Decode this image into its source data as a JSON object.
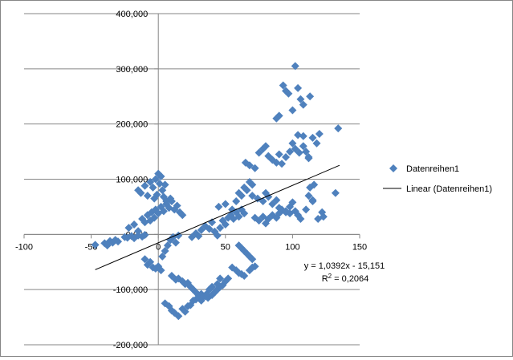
{
  "chart_data": {
    "type": "scatter",
    "title": "",
    "xlabel": "",
    "ylabel": "",
    "xlim": [
      -100,
      150
    ],
    "ylim": [
      -200000,
      400000
    ],
    "x_ticks": [
      -100,
      -50,
      0,
      50,
      100,
      150
    ],
    "x_tick_labels": [
      "-100",
      "-50",
      "0",
      "50",
      "100",
      "150"
    ],
    "y_ticks": [
      -200000,
      -100000,
      0,
      100000,
      200000,
      300000,
      400000
    ],
    "y_tick_labels": [
      "-200,000",
      "-100,000",
      "0,000",
      "100,000",
      "200,000",
      "300,000",
      "400,000"
    ],
    "grid": "horizontal major gridlines",
    "legend_position": "right",
    "legend": [
      "Datenreihen1",
      "Linear (Datenreihen1)"
    ],
    "marker_color": "#4f81bd",
    "trendline_color": "#000000",
    "trendline": {
      "slope": 1039.2,
      "intercept": -15151,
      "x_range": [
        -47,
        135
      ]
    },
    "annotation_equation": "y = 1,0392x - 15,151",
    "annotation_r2_prefix": "R",
    "annotation_r2_sup": "2",
    "annotation_r2_value": " = 0,2064",
    "series": [
      {
        "name": "Datenreihen1",
        "points": [
          [
            -47,
            -19000
          ],
          [
            -40,
            -16000
          ],
          [
            -38,
            -20000
          ],
          [
            -36,
            -12000
          ],
          [
            -34,
            -15000
          ],
          [
            -32,
            -10000
          ],
          [
            -30,
            -13000
          ],
          [
            -25,
            -5000
          ],
          [
            -23,
            -6000
          ],
          [
            -20,
            -3000
          ],
          [
            -18,
            -7000
          ],
          [
            -15,
            -2000
          ],
          [
            -12,
            -4000
          ],
          [
            -10,
            -1000
          ],
          [
            -22,
            12000
          ],
          [
            -18,
            18000
          ],
          [
            -15,
            6000
          ],
          [
            -12,
            28000
          ],
          [
            -10,
            22000
          ],
          [
            -8,
            35000
          ],
          [
            -6,
            25000
          ],
          [
            -5,
            40000
          ],
          [
            -3,
            30000
          ],
          [
            -2,
            45000
          ],
          [
            0,
            38000
          ],
          [
            2,
            50000
          ],
          [
            4,
            42000
          ],
          [
            6,
            55000
          ],
          [
            8,
            48000
          ],
          [
            10,
            60000
          ],
          [
            12,
            45000
          ],
          [
            14,
            52000
          ],
          [
            16,
            40000
          ],
          [
            18,
            35000
          ],
          [
            -15,
            80000
          ],
          [
            -13,
            75000
          ],
          [
            -10,
            88000
          ],
          [
            -8,
            70000
          ],
          [
            -6,
            95000
          ],
          [
            -4,
            85000
          ],
          [
            -2,
            100000
          ],
          [
            0,
            110000
          ],
          [
            1,
            92000
          ],
          [
            2,
            105000
          ],
          [
            3,
            80000
          ],
          [
            5,
            90000
          ],
          [
            -3,
            65000
          ],
          [
            -1,
            72000
          ],
          [
            4,
            68000
          ],
          [
            6,
            60000
          ],
          [
            9,
            65000
          ],
          [
            -10,
            -45000
          ],
          [
            -8,
            -55000
          ],
          [
            -6,
            -50000
          ],
          [
            -4,
            -60000
          ],
          [
            -2,
            -62000
          ],
          [
            0,
            -58000
          ],
          [
            2,
            -65000
          ],
          [
            3,
            -40000
          ],
          [
            5,
            -30000
          ],
          [
            7,
            -20000
          ],
          [
            9,
            -10000
          ],
          [
            11,
            -5000
          ],
          [
            13,
            -15000
          ],
          [
            15,
            -2000
          ],
          [
            10,
            -75000
          ],
          [
            13,
            -82000
          ],
          [
            15,
            -80000
          ],
          [
            18,
            -85000
          ],
          [
            20,
            -90000
          ],
          [
            22,
            -88000
          ],
          [
            24,
            -95000
          ],
          [
            26,
            -100000
          ],
          [
            28,
            -105000
          ],
          [
            30,
            -110000
          ],
          [
            32,
            -108000
          ],
          [
            35,
            -112000
          ],
          [
            37,
            -115000
          ],
          [
            40,
            -110000
          ],
          [
            42,
            -105000
          ],
          [
            44,
            -100000
          ],
          [
            46,
            -95000
          ],
          [
            48,
            -92000
          ],
          [
            50,
            -85000
          ],
          [
            52,
            -80000
          ],
          [
            5,
            -125000
          ],
          [
            8,
            -130000
          ],
          [
            10,
            -138000
          ],
          [
            12,
            -142000
          ],
          [
            15,
            -148000
          ],
          [
            18,
            -135000
          ],
          [
            20,
            -140000
          ],
          [
            22,
            -130000
          ],
          [
            24,
            -128000
          ],
          [
            26,
            -120000
          ],
          [
            28,
            -118000
          ],
          [
            30,
            -115000
          ],
          [
            32,
            -120000
          ],
          [
            34,
            -112000
          ],
          [
            36,
            -108000
          ],
          [
            38,
            -100000
          ],
          [
            40,
            -95000
          ],
          [
            44,
            -90000
          ],
          [
            46,
            -80000
          ],
          [
            25,
            -5000
          ],
          [
            28,
            2000
          ],
          [
            30,
            -3000
          ],
          [
            32,
            8000
          ],
          [
            35,
            15000
          ],
          [
            38,
            10000
          ],
          [
            40,
            22000
          ],
          [
            42,
            5000
          ],
          [
            44,
            -2000
          ],
          [
            46,
            12000
          ],
          [
            48,
            25000
          ],
          [
            50,
            18000
          ],
          [
            52,
            30000
          ],
          [
            54,
            35000
          ],
          [
            56,
            28000
          ],
          [
            58,
            40000
          ],
          [
            60,
            32000
          ],
          [
            62,
            45000
          ],
          [
            64,
            38000
          ],
          [
            45,
            50000
          ],
          [
            50,
            55000
          ],
          [
            55,
            45000
          ],
          [
            58,
            60000
          ],
          [
            60,
            75000
          ],
          [
            62,
            70000
          ],
          [
            64,
            85000
          ],
          [
            66,
            80000
          ],
          [
            68,
            95000
          ],
          [
            70,
            90000
          ],
          [
            60,
            -20000
          ],
          [
            62,
            -25000
          ],
          [
            64,
            -30000
          ],
          [
            66,
            -35000
          ],
          [
            68,
            -40000
          ],
          [
            70,
            -45000
          ],
          [
            55,
            -60000
          ],
          [
            58,
            -65000
          ],
          [
            60,
            -70000
          ],
          [
            62,
            -72000
          ],
          [
            64,
            -75000
          ],
          [
            68,
            -65000
          ],
          [
            70,
            -60000
          ],
          [
            72,
            -58000
          ],
          [
            65,
            130000
          ],
          [
            68,
            125000
          ],
          [
            72,
            120000
          ],
          [
            75,
            148000
          ],
          [
            78,
            155000
          ],
          [
            80,
            160000
          ],
          [
            82,
            142000
          ],
          [
            85,
            135000
          ],
          [
            88,
            130000
          ],
          [
            90,
            145000
          ],
          [
            92,
            128000
          ],
          [
            95,
            140000
          ],
          [
            98,
            150000
          ],
          [
            100,
            165000
          ],
          [
            102,
            155000
          ],
          [
            105,
            148000
          ],
          [
            108,
            160000
          ],
          [
            110,
            150000
          ],
          [
            112,
            138000
          ],
          [
            70,
            70000
          ],
          [
            74,
            65000
          ],
          [
            78,
            60000
          ],
          [
            80,
            75000
          ],
          [
            82,
            68000
          ],
          [
            85,
            55000
          ],
          [
            88,
            62000
          ],
          [
            90,
            48000
          ],
          [
            92,
            45000
          ],
          [
            95,
            40000
          ],
          [
            98,
            50000
          ],
          [
            100,
            58000
          ],
          [
            102,
            42000
          ],
          [
            104,
            35000
          ],
          [
            106,
            28000
          ],
          [
            110,
            45000
          ],
          [
            112,
            70000
          ],
          [
            115,
            60000
          ],
          [
            72,
            30000
          ],
          [
            75,
            25000
          ],
          [
            78,
            32000
          ],
          [
            80,
            20000
          ],
          [
            82,
            28000
          ],
          [
            85,
            35000
          ],
          [
            88,
            30000
          ],
          [
            90,
            38000
          ],
          [
            95,
            42000
          ],
          [
            98,
            38000
          ],
          [
            88,
            210000
          ],
          [
            90,
            215000
          ],
          [
            93,
            270000
          ],
          [
            95,
            260000
          ],
          [
            97,
            255000
          ],
          [
            100,
            225000
          ],
          [
            102,
            305000
          ],
          [
            104,
            265000
          ],
          [
            106,
            245000
          ],
          [
            108,
            235000
          ],
          [
            113,
            250000
          ],
          [
            115,
            175000
          ],
          [
            118,
            165000
          ],
          [
            120,
            182000
          ],
          [
            104,
            180000
          ],
          [
            108,
            178000
          ],
          [
            112,
            140000
          ],
          [
            113,
            85000
          ],
          [
            115,
            62000
          ],
          [
            119,
            28000
          ],
          [
            122,
            40000
          ],
          [
            134,
            192000
          ],
          [
            132,
            75000
          ],
          [
            123,
            32000
          ],
          [
            116,
            90000
          ]
        ]
      }
    ]
  }
}
